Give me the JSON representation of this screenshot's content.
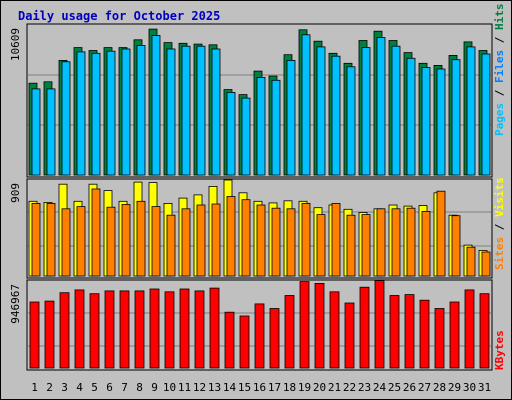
{
  "title": "Daily usage for October 2025",
  "chart_data": [
    {
      "type": "bar",
      "panel": "top",
      "y_max_label": "10609",
      "ylim": [
        0,
        10609
      ],
      "legend_labels": [
        "Pages",
        "Files",
        "Hits"
      ],
      "legend_separator": " / ",
      "days": [
        "1",
        "2",
        "3",
        "4",
        "5",
        "6",
        "7",
        "8",
        "9",
        "10",
        "11",
        "12",
        "13",
        "14",
        "15",
        "16",
        "17",
        "18",
        "19",
        "20",
        "21",
        "22",
        "23",
        "24",
        "25",
        "26",
        "27",
        "28",
        "29",
        "30",
        "31"
      ],
      "weekend_days": [
        "4",
        "5",
        "11",
        "12",
        "18",
        "19",
        "25",
        "26"
      ],
      "series": [
        {
          "name": "Hits",
          "color": "#008040",
          "values": [
            6450,
            6550,
            8050,
            8950,
            8750,
            8950,
            8950,
            9500,
            10250,
            9300,
            9250,
            9200,
            9150,
            6000,
            5650,
            7300,
            6950,
            8450,
            10200,
            9400,
            8550,
            7850,
            9450,
            10100,
            9450,
            8600,
            7850,
            7700,
            8400,
            9350,
            8750
          ]
        },
        {
          "name": "Files",
          "color": "#00c0ff",
          "values": [
            6050,
            6050,
            7950,
            8650,
            8550,
            8700,
            8850,
            9100,
            9800,
            8850,
            9050,
            9050,
            8850,
            5800,
            5400,
            6850,
            6650,
            8050,
            9850,
            9000,
            8350,
            7600,
            8950,
            9650,
            9050,
            8200,
            7550,
            7450,
            8100,
            9000,
            8500
          ]
        }
      ]
    },
    {
      "type": "bar",
      "panel": "middle",
      "y_max_label": "909",
      "ylim": [
        0,
        909
      ],
      "legend_labels": [
        "Sites",
        "Visits"
      ],
      "legend_separator": " / ",
      "series": [
        {
          "name": "Visits",
          "color": "#ffff00",
          "values": [
            700,
            690,
            860,
            700,
            860,
            800,
            700,
            880,
            875,
            680,
            730,
            760,
            840,
            900,
            780,
            700,
            685,
            705,
            700,
            640,
            665,
            625,
            595,
            630,
            665,
            655,
            660,
            780,
            570,
            290,
            240
          ]
        },
        {
          "name": "Sites",
          "color": "#ff8000",
          "values": [
            680,
            680,
            630,
            650,
            815,
            645,
            670,
            700,
            650,
            570,
            630,
            665,
            675,
            745,
            715,
            665,
            635,
            630,
            680,
            575,
            680,
            570,
            575,
            630,
            630,
            635,
            605,
            795,
            565,
            270,
            225
          ]
        }
      ]
    },
    {
      "type": "bar",
      "panel": "bottom",
      "y_max_label": "946967",
      "ylim": [
        0,
        946967
      ],
      "legend_labels": [
        "KBytes"
      ],
      "series": [
        {
          "name": "KBytes",
          "color": "#ff0000",
          "values": [
            710000,
            720000,
            810000,
            840000,
            800000,
            830000,
            830000,
            830000,
            850000,
            820000,
            850000,
            830000,
            860000,
            600000,
            560000,
            690000,
            640000,
            780000,
            930000,
            910000,
            820000,
            700000,
            870000,
            940000,
            780000,
            790000,
            730000,
            640000,
            710000,
            840000,
            800000
          ]
        }
      ]
    }
  ]
}
